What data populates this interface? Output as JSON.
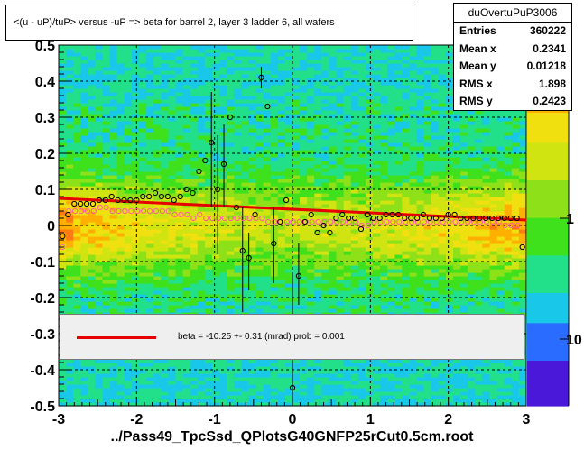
{
  "title": "<(u - uP)/tuP> versus  -uP => beta for barrel 2, layer 3 ladder 6, all wafers",
  "stats": {
    "name": "duOvertuPuP3006",
    "entries_label": "Entries",
    "entries": "360222",
    "meanx_label": "Mean x",
    "meanx": "0.2341",
    "meany_label": "Mean y",
    "meany": "0.01218",
    "rmsx_label": "RMS x",
    "rmsx": "1.898",
    "rmsy_label": "RMS y",
    "rmsy": "0.2423"
  },
  "legend": {
    "text": "beta =  -10.25 +-  0.31 (mrad) prob = 0.001",
    "line_color": "#e60000"
  },
  "xlabel": "../Pass49_TpcSsd_QPlotsG40GNFP25rCut0.5cm.root",
  "colors": {
    "marker_black": "#000000",
    "marker_pink": "#ff5fa0",
    "fit_line": "#e60000"
  },
  "chart_data": {
    "type": "heatmap",
    "xlim": [
      -3,
      3
    ],
    "ylim": [
      -0.5,
      0.5
    ],
    "x_ticks": [
      "-3",
      "-2",
      "-1",
      "0",
      "1",
      "2",
      "3"
    ],
    "y_ticks": [
      "-0.5",
      "-0.4",
      "-0.3",
      "-0.2",
      "-0.1",
      "0",
      "0.1",
      "0.2",
      "0.3",
      "0.4",
      "0.5"
    ],
    "z_ticks": [
      "1",
      "10"
    ],
    "grid": true,
    "fit_line": {
      "x": [
        -3,
        3
      ],
      "y": [
        0.075,
        0.015
      ]
    },
    "profile_black": {
      "x": [
        -2.95,
        -2.88,
        -2.8,
        -2.72,
        -2.64,
        -2.56,
        -2.48,
        -2.4,
        -2.32,
        -2.24,
        -2.16,
        -2.08,
        -2.0,
        -1.92,
        -1.84,
        -1.76,
        -1.68,
        -1.6,
        -1.52,
        -1.44,
        -1.36,
        -1.28,
        -1.2,
        -1.12,
        -1.04,
        -0.96,
        -0.88,
        -0.8,
        -0.72,
        -0.64,
        -0.56,
        -0.48,
        -0.4,
        -0.32,
        -0.24,
        -0.16,
        -0.08,
        0.0,
        0.08,
        0.16,
        0.24,
        0.32,
        0.4,
        0.48,
        0.56,
        0.64,
        0.72,
        0.8,
        0.88,
        0.96,
        1.04,
        1.12,
        1.2,
        1.28,
        1.36,
        1.44,
        1.52,
        1.6,
        1.68,
        1.76,
        1.84,
        1.92,
        2.0,
        2.08,
        2.16,
        2.24,
        2.32,
        2.4,
        2.48,
        2.56,
        2.64,
        2.72,
        2.8,
        2.88,
        2.95
      ],
      "y": [
        -0.03,
        0.03,
        0.06,
        0.06,
        0.06,
        0.06,
        0.07,
        0.07,
        0.08,
        0.07,
        0.07,
        0.07,
        0.07,
        0.08,
        0.08,
        0.09,
        0.08,
        0.08,
        0.07,
        0.08,
        0.1,
        0.09,
        0.15,
        0.18,
        0.23,
        0.1,
        0.17,
        0.3,
        0.05,
        -0.07,
        -0.09,
        0.03,
        0.41,
        0.33,
        -0.05,
        0.01,
        0.07,
        -0.45,
        -0.14,
        0.01,
        0.03,
        -0.02,
        0.0,
        -0.02,
        0.02,
        0.03,
        0.02,
        0.02,
        -0.01,
        0.03,
        0.02,
        0.02,
        0.03,
        0.03,
        0.03,
        0.02,
        0.02,
        0.02,
        0.03,
        0.02,
        0.02,
        0.02,
        0.03,
        0.03,
        0.02,
        0.02,
        0.02,
        0.02,
        0.02,
        0.02,
        0.02,
        0.02,
        0.02,
        0.02,
        -0.06
      ]
    },
    "profile_pink": {
      "x": [
        -2.95,
        -2.87,
        -2.79,
        -2.71,
        -2.63,
        -2.55,
        -2.47,
        -2.39,
        -2.31,
        -2.23,
        -2.15,
        -2.07,
        -1.99,
        -1.91,
        -1.83,
        -1.75,
        -1.67,
        -1.59,
        -1.51,
        -1.43,
        -1.35,
        -1.27,
        -1.19,
        -1.11,
        -1.03,
        -0.95,
        -0.87,
        -0.79,
        -0.71,
        -0.63,
        -0.55,
        -0.47,
        -0.39,
        -0.31,
        -0.23,
        -0.15,
        -0.07,
        0.01,
        0.09,
        0.17,
        0.25,
        0.33,
        0.41,
        0.49,
        0.57,
        0.65,
        0.73,
        0.81,
        0.89,
        0.97,
        1.05,
        1.13,
        1.21,
        1.29,
        1.37,
        1.45,
        1.53,
        1.61,
        1.69,
        1.77,
        1.85,
        1.93,
        2.01,
        2.09,
        2.17,
        2.25,
        2.33,
        2.41,
        2.49,
        2.57,
        2.65,
        2.73,
        2.81,
        2.89,
        2.95
      ],
      "y": [
        -0.06,
        0.04,
        0.04,
        0.04,
        0.04,
        0.04,
        0.05,
        0.05,
        0.04,
        0.04,
        0.04,
        0.04,
        0.04,
        0.04,
        0.04,
        0.04,
        0.04,
        0.04,
        0.03,
        0.03,
        0.03,
        0.02,
        0.03,
        0.02,
        0.02,
        0.02,
        0.02,
        0.02,
        0.02,
        0.02,
        0.02,
        0.02,
        0.02,
        0.01,
        0.01,
        0.01,
        0.01,
        0.01,
        0.01,
        0.01,
        0.01,
        0.01,
        0.01,
        0.01,
        0.01,
        0.01,
        0.01,
        0.01,
        0.0,
        0.0,
        0.01,
        0.01,
        0.01,
        0.01,
        0.01,
        0.01,
        0.01,
        0.01,
        0.01,
        0.01,
        0.01,
        0.01,
        0.01,
        0.01,
        0.01,
        0.01,
        0.01,
        0.01,
        0.01,
        0.01,
        0.01,
        0.0,
        0.0,
        0.0,
        -0.06
      ]
    },
    "error_bars": [
      {
        "x": -1.04,
        "y": 0.23,
        "lo": 0.05,
        "hi": 0.37
      },
      {
        "x": -0.96,
        "y": 0.1,
        "lo": -0.08,
        "hi": 0.25
      },
      {
        "x": -0.88,
        "y": 0.17,
        "lo": 0.05,
        "hi": 0.28
      },
      {
        "x": -0.64,
        "y": -0.07,
        "lo": -0.24,
        "hi": 0.05
      },
      {
        "x": -0.56,
        "y": -0.09,
        "lo": -0.18,
        "hi": -0.02
      },
      {
        "x": -0.4,
        "y": 0.41,
        "lo": 0.38,
        "hi": 0.44
      },
      {
        "x": -0.24,
        "y": -0.05,
        "lo": -0.16,
        "hi": 0.05
      },
      {
        "x": 0.0,
        "y": -0.45,
        "lo": -0.5,
        "hi": -0.13
      },
      {
        "x": 0.08,
        "y": -0.14,
        "lo": -0.22,
        "hi": -0.05
      }
    ]
  }
}
